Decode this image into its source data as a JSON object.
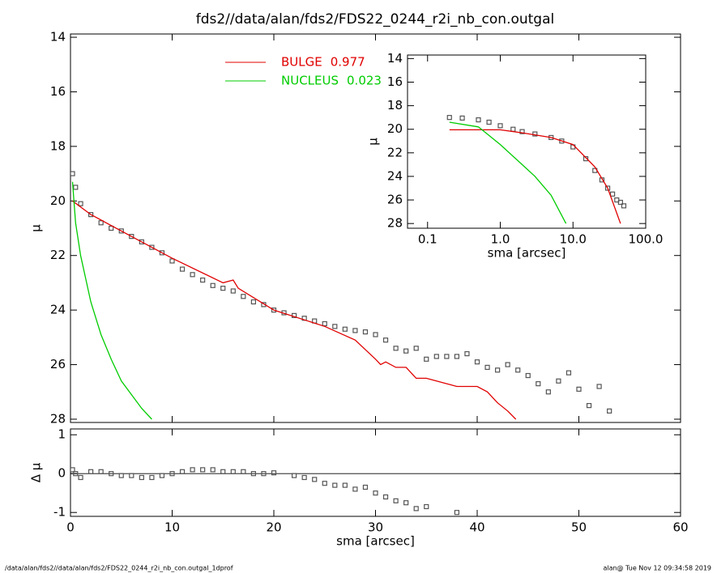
{
  "chart_data": [
    {
      "type": "scatter",
      "title": "fds2//data/alan/fds2/FDS22_0244_r2i_nb_con.outgal",
      "y_label": "μ",
      "xlim": [
        0,
        60
      ],
      "ylim": [
        13.88,
        28.12
      ],
      "y_inverted": true,
      "yticks": [
        14,
        16,
        18,
        20,
        22,
        24,
        26,
        28
      ],
      "series": [
        {
          "color": "#555555",
          "marker": "square",
          "x": [
            0.2,
            0.5,
            1,
            2,
            3,
            4,
            5,
            6,
            7,
            8,
            9,
            10,
            11,
            12,
            13,
            14,
            15,
            16,
            17,
            18,
            19,
            20,
            21,
            22,
            23,
            24,
            25,
            26,
            27,
            28,
            29,
            30,
            31,
            32,
            33,
            34,
            35,
            36,
            37,
            38,
            39,
            40,
            41,
            42,
            43,
            44,
            45,
            46,
            47,
            48,
            49,
            50,
            51,
            52,
            53
          ],
          "values": [
            19.0,
            19.5,
            20.1,
            20.5,
            20.8,
            21.0,
            21.1,
            21.3,
            21.5,
            21.7,
            21.9,
            22.2,
            22.5,
            22.7,
            22.9,
            23.1,
            23.2,
            23.3,
            23.5,
            23.7,
            23.8,
            24.0,
            24.1,
            24.2,
            24.3,
            24.4,
            24.5,
            24.6,
            24.7,
            24.75,
            24.8,
            24.9,
            25.1,
            25.4,
            25.5,
            25.4,
            25.8,
            25.7,
            25.7,
            25.7,
            25.6,
            25.9,
            26.1,
            26.2,
            26.0,
            26.2,
            26.4,
            26.7,
            27.0,
            26.6,
            26.3,
            26.9,
            27.5,
            26.8,
            27.7
          ]
        },
        {
          "name": "BULGE",
          "fraction": 0.977,
          "color": "#e00000",
          "x": [
            0.2,
            2,
            5,
            10,
            15,
            16,
            16.5,
            20,
            25,
            28,
            30,
            30.5,
            31,
            32,
            33,
            34,
            35,
            36,
            38,
            40,
            41,
            42,
            43,
            43.8
          ],
          "values": [
            20.0,
            20.5,
            21.1,
            22.1,
            23.0,
            22.9,
            23.2,
            24.0,
            24.6,
            25.1,
            25.8,
            26.0,
            25.9,
            26.1,
            26.1,
            26.5,
            26.5,
            26.6,
            26.8,
            26.8,
            27.0,
            27.4,
            27.7,
            28.0
          ]
        },
        {
          "name": "NUCLEUS",
          "fraction": 0.023,
          "color": "#00cc00",
          "x": [
            0.2,
            0.5,
            1,
            2,
            3,
            4,
            5,
            6,
            7,
            8
          ],
          "values": [
            19.3,
            20.8,
            22.0,
            23.7,
            24.9,
            25.8,
            26.6,
            27.1,
            27.6,
            28.0
          ]
        }
      ]
    },
    {
      "type": "scatter",
      "x_label": "sma [arcsec]",
      "y_label": "μ",
      "x_log": true,
      "xlim": [
        0.053,
        100
      ],
      "ylim": [
        13.7,
        28.4
      ],
      "y_inverted": true,
      "xticks": [
        0.1,
        {
          "value": 1,
          "label": "1.0"
        },
        {
          "value": 10,
          "label": "10.0"
        },
        {
          "value": 100,
          "label": "100.0"
        }
      ],
      "yticks": [
        14,
        16,
        18,
        20,
        22,
        24,
        26,
        28
      ],
      "series": [
        {
          "color": "#555555",
          "marker": "square",
          "x": [
            0.2,
            0.3,
            0.5,
            0.7,
            1,
            1.5,
            2,
            3,
            5,
            7,
            10,
            15,
            20,
            25,
            30,
            35,
            40,
            45,
            50
          ],
          "values": [
            19.0,
            19.05,
            19.2,
            19.4,
            19.7,
            20.0,
            20.2,
            20.4,
            20.7,
            21.0,
            21.5,
            22.5,
            23.5,
            24.3,
            25.0,
            25.5,
            26.0,
            26.2,
            26.5
          ]
        },
        {
          "color": "#e00000",
          "x": [
            0.2,
            1,
            2,
            5,
            10,
            20,
            30,
            45
          ],
          "values": [
            20.05,
            20.05,
            20.3,
            20.7,
            21.3,
            23.2,
            25.0,
            28.0
          ]
        },
        {
          "color": "#00cc00",
          "x": [
            0.2,
            0.5,
            1,
            2,
            3,
            5,
            8
          ],
          "values": [
            19.4,
            19.8,
            21.3,
            23.0,
            24.0,
            25.6,
            28.0
          ]
        }
      ]
    },
    {
      "type": "scatter",
      "x_label": "sma [arcsec]",
      "y_label": "Δ μ",
      "xlim": [
        0,
        60
      ],
      "ylim": [
        -1.1,
        1.15
      ],
      "xticks": [
        0,
        10,
        20,
        30,
        40,
        50,
        60
      ],
      "yticks": [
        1,
        0,
        -1
      ],
      "series": [
        {
          "color": "#555555",
          "marker": "square",
          "x": [
            0.2,
            0.5,
            1,
            2,
            3,
            4,
            5,
            6,
            7,
            8,
            9,
            10,
            11,
            12,
            13,
            14,
            15,
            16,
            17,
            18,
            19,
            20,
            22,
            23,
            24,
            25,
            26,
            27,
            28,
            29,
            30,
            31,
            32,
            33,
            34,
            35,
            38
          ],
          "values": [
            0.1,
            0.0,
            -0.1,
            0.05,
            0.05,
            0.0,
            -0.05,
            -0.05,
            -0.1,
            -0.1,
            -0.05,
            0.0,
            0.05,
            0.1,
            0.1,
            0.1,
            0.05,
            0.05,
            0.05,
            0.0,
            0.0,
            0.02,
            -0.05,
            -0.1,
            -0.15,
            -0.25,
            -0.3,
            -0.3,
            -0.4,
            -0.35,
            -0.5,
            -0.6,
            -0.7,
            -0.75,
            -0.9,
            -0.85,
            -1.0
          ]
        }
      ]
    }
  ],
  "footer": {
    "left": "/data/alan/fds2//data/alan/fds2/FDS22_0244_r2i_nb_con.outgal_1dprof",
    "right": "alan@  Tue Nov 12 09:34:58 2019"
  }
}
